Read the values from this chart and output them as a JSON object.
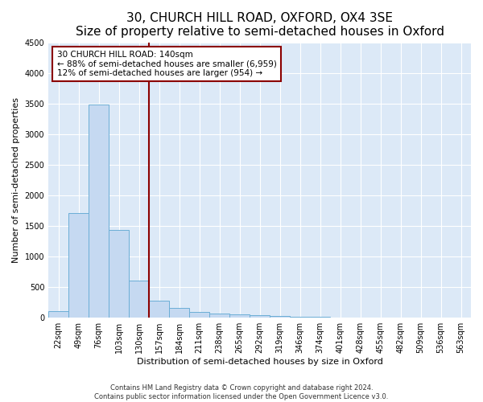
{
  "title": "30, CHURCH HILL ROAD, OXFORD, OX4 3SE",
  "subtitle": "Size of property relative to semi-detached houses in Oxford",
  "xlabel": "Distribution of semi-detached houses by size in Oxford",
  "ylabel": "Number of semi-detached properties",
  "bar_labels": [
    "22sqm",
    "49sqm",
    "76sqm",
    "103sqm",
    "130sqm",
    "157sqm",
    "184sqm",
    "211sqm",
    "238sqm",
    "265sqm",
    "292sqm",
    "319sqm",
    "346sqm",
    "374sqm",
    "401sqm",
    "428sqm",
    "455sqm",
    "482sqm",
    "509sqm",
    "536sqm",
    "563sqm"
  ],
  "bar_values": [
    110,
    1710,
    3490,
    1440,
    610,
    280,
    155,
    100,
    75,
    55,
    40,
    25,
    18,
    12,
    8,
    5,
    3,
    2,
    2,
    1,
    1
  ],
  "bar_color": "#c5d9f1",
  "bar_edgecolor": "#6baed6",
  "vline_color": "#8b0000",
  "vline_x": 4.5,
  "annotation_text": "30 CHURCH HILL ROAD: 140sqm\n← 88% of semi-detached houses are smaller (6,959)\n12% of semi-detached houses are larger (954) →",
  "annotation_box_facecolor": "#ffffff",
  "annotation_box_edgecolor": "#8b0000",
  "ylim": [
    0,
    4500
  ],
  "yticks": [
    0,
    500,
    1000,
    1500,
    2000,
    2500,
    3000,
    3500,
    4000,
    4500
  ],
  "footnote": "Contains HM Land Registry data © Crown copyright and database right 2024.\nContains public sector information licensed under the Open Government Licence v3.0.",
  "background_color": "#ffffff",
  "plot_background_color": "#dce9f7",
  "grid_color": "#ffffff",
  "title_fontsize": 11,
  "subtitle_fontsize": 9,
  "axis_label_fontsize": 8,
  "tick_fontsize": 7,
  "annotation_fontsize": 7.5,
  "footnote_fontsize": 6
}
